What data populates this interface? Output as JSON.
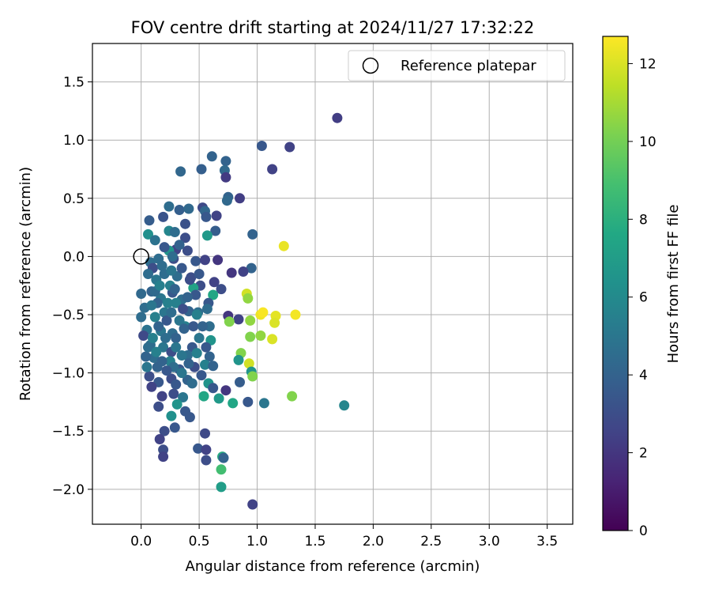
{
  "chart_data": {
    "type": "scatter",
    "title": "FOV centre drift starting at 2024/11/27 17:32:22",
    "xlabel": "Angular distance from reference (arcmin)",
    "ylabel": "Rotation from reference (arcmin)",
    "xlim": [
      -0.42,
      3.72
    ],
    "ylim": [
      -2.3,
      1.83
    ],
    "xticks": [
      0.0,
      0.5,
      1.0,
      1.5,
      2.0,
      2.5,
      3.0,
      3.5
    ],
    "xtick_labels": [
      "0.0",
      "0.5",
      "1.0",
      "1.5",
      "2.0",
      "2.5",
      "3.0",
      "3.5"
    ],
    "yticks": [
      -2.0,
      -1.5,
      -1.0,
      -0.5,
      0.0,
      0.5,
      1.0,
      1.5
    ],
    "ytick_labels": [
      "−2.0",
      "−1.5",
      "−1.0",
      "−0.5",
      "0.0",
      "0.5",
      "1.0",
      "1.5"
    ],
    "grid": true,
    "legend": {
      "placement": "top-right",
      "entries": [
        "Reference platepar"
      ]
    },
    "colorbar": {
      "label": "Hours from first FF file",
      "colormap": "viridis",
      "range": [
        0,
        12.7
      ],
      "ticks": [
        0,
        2,
        4,
        6,
        8,
        10,
        12
      ],
      "tick_labels": [
        "0",
        "2",
        "4",
        "6",
        "8",
        "10",
        "12"
      ]
    },
    "reference_point": {
      "x": 0.0,
      "y": 0.0
    },
    "points_xyh": [
      [
        1.69,
        1.19,
        2.3
      ],
      [
        1.04,
        0.95,
        3.5
      ],
      [
        1.28,
        0.94,
        2.5
      ],
      [
        0.61,
        0.86,
        4.0
      ],
      [
        0.73,
        0.82,
        4.0
      ],
      [
        0.52,
        0.75,
        3.8
      ],
      [
        0.34,
        0.73,
        4.2
      ],
      [
        1.13,
        0.75,
        2.5
      ],
      [
        0.72,
        0.74,
        4.3
      ],
      [
        0.73,
        0.68,
        2.2
      ],
      [
        0.75,
        0.51,
        4.0
      ],
      [
        0.85,
        0.5,
        2.3
      ],
      [
        0.74,
        0.48,
        4.3
      ],
      [
        0.24,
        0.43,
        4.5
      ],
      [
        0.33,
        0.4,
        3.8
      ],
      [
        0.41,
        0.41,
        4.3
      ],
      [
        0.53,
        0.42,
        2.8
      ],
      [
        0.55,
        0.39,
        4.2
      ],
      [
        0.56,
        0.34,
        3.5
      ],
      [
        0.65,
        0.35,
        2.5
      ],
      [
        0.19,
        0.34,
        3.3
      ],
      [
        0.07,
        0.31,
        3.7
      ],
      [
        0.38,
        0.28,
        3.2
      ],
      [
        0.64,
        0.22,
        3.7
      ],
      [
        0.06,
        0.19,
        6.3
      ],
      [
        0.57,
        0.18,
        6.8
      ],
      [
        0.96,
        0.19,
        4.0
      ],
      [
        0.24,
        0.22,
        5.8
      ],
      [
        0.29,
        0.21,
        4.5
      ],
      [
        0.12,
        0.14,
        4.8
      ],
      [
        0.38,
        0.16,
        3.0
      ],
      [
        0.3,
        0.06,
        2.5
      ],
      [
        0.24,
        0.05,
        6.5
      ],
      [
        1.23,
        0.09,
        12.3
      ],
      [
        0.08,
        -0.05,
        4.5
      ],
      [
        0.15,
        -0.02,
        4.5
      ],
      [
        0.28,
        -0.02,
        3.0
      ],
      [
        0.47,
        -0.04,
        3.5
      ],
      [
        0.55,
        -0.03,
        2.5
      ],
      [
        0.66,
        -0.03,
        2.0
      ],
      [
        0.95,
        -0.1,
        4.0
      ],
      [
        0.78,
        -0.14,
        2.0
      ],
      [
        0.88,
        -0.13,
        2.5
      ],
      [
        0.13,
        -0.2,
        5.0
      ],
      [
        0.31,
        -0.17,
        4.5
      ],
      [
        0.43,
        -0.18,
        3.0
      ],
      [
        0.51,
        -0.25,
        3.0
      ],
      [
        0.63,
        -0.22,
        2.5
      ],
      [
        0.45,
        -0.27,
        7.3
      ],
      [
        0.69,
        -0.28,
        3.0
      ],
      [
        0.0,
        -0.32,
        4.3
      ],
      [
        0.09,
        -0.3,
        4.0
      ],
      [
        0.17,
        -0.36,
        5.0
      ],
      [
        0.27,
        -0.31,
        3.5
      ],
      [
        0.35,
        -0.37,
        4.5
      ],
      [
        0.47,
        -0.33,
        3.5
      ],
      [
        0.62,
        -0.33,
        7.5
      ],
      [
        0.91,
        -0.32,
        11.8
      ],
      [
        0.92,
        -0.36,
        10.6
      ],
      [
        0.3,
        -0.4,
        5.5
      ],
      [
        0.58,
        -0.4,
        3.5
      ],
      [
        0.03,
        -0.44,
        4.5
      ],
      [
        0.2,
        -0.48,
        5.0
      ],
      [
        0.12,
        -0.52,
        5.5
      ],
      [
        0.41,
        -0.47,
        4.0
      ],
      [
        0.49,
        -0.48,
        4.5
      ],
      [
        1.03,
        -0.5,
        12.4
      ],
      [
        1.05,
        -0.48,
        12.6
      ],
      [
        1.16,
        -0.51,
        12.2
      ],
      [
        1.15,
        -0.57,
        12.0
      ],
      [
        1.33,
        -0.5,
        12.5
      ],
      [
        0.75,
        -0.51,
        2.0
      ],
      [
        0.84,
        -0.54,
        2.5
      ],
      [
        0.94,
        -0.55,
        10.6
      ],
      [
        0.76,
        -0.56,
        10.3
      ],
      [
        0.0,
        -0.52,
        4.5
      ],
      [
        0.05,
        -0.63,
        4.8
      ],
      [
        0.17,
        -0.64,
        5.0
      ],
      [
        0.27,
        -0.66,
        4.5
      ],
      [
        0.38,
        -0.6,
        5.5
      ],
      [
        0.59,
        -0.6,
        4.5
      ],
      [
        0.3,
        -0.7,
        4.0
      ],
      [
        0.6,
        -0.72,
        6.5
      ],
      [
        0.08,
        -0.76,
        4.5
      ],
      [
        0.19,
        -0.78,
        5.0
      ],
      [
        0.44,
        -0.78,
        3.5
      ],
      [
        1.03,
        -0.68,
        10.6
      ],
      [
        0.94,
        -0.69,
        10.3
      ],
      [
        1.13,
        -0.71,
        12.0
      ],
      [
        0.02,
        -0.68,
        2.8
      ],
      [
        0.11,
        -0.87,
        4.5
      ],
      [
        0.26,
        -0.82,
        3.0
      ],
      [
        0.4,
        -0.85,
        4.5
      ],
      [
        0.48,
        -0.83,
        5.5
      ],
      [
        0.59,
        -0.86,
        4.0
      ],
      [
        0.86,
        -0.83,
        10.3
      ],
      [
        0.84,
        -0.89,
        6.5
      ],
      [
        0.93,
        -0.92,
        11.8
      ],
      [
        0.95,
        -0.99,
        6.5
      ],
      [
        0.04,
        -0.86,
        4.0
      ],
      [
        0.14,
        -0.95,
        4.0
      ],
      [
        0.25,
        -0.9,
        5.5
      ],
      [
        0.33,
        -0.97,
        3.5
      ],
      [
        0.46,
        -0.95,
        3.0
      ],
      [
        0.55,
        -0.93,
        5.5
      ],
      [
        0.62,
        -0.94,
        4.0
      ],
      [
        0.07,
        -1.03,
        3.0
      ],
      [
        0.15,
        -1.08,
        3.5
      ],
      [
        0.26,
        -1.05,
        3.0
      ],
      [
        0.4,
        -1.06,
        4.0
      ],
      [
        0.52,
        -1.02,
        3.5
      ],
      [
        0.96,
        -1.03,
        10.3
      ],
      [
        0.09,
        -1.12,
        2.5
      ],
      [
        0.3,
        -1.1,
        3.5
      ],
      [
        0.44,
        -1.09,
        4.5
      ],
      [
        0.58,
        -1.09,
        6.5
      ],
      [
        0.62,
        -1.13,
        3.5
      ],
      [
        0.85,
        -1.08,
        3.7
      ],
      [
        0.18,
        -1.2,
        2.5
      ],
      [
        0.28,
        -1.18,
        3.0
      ],
      [
        0.36,
        -1.21,
        5.0
      ],
      [
        0.54,
        -1.2,
        7.5
      ],
      [
        0.73,
        -1.15,
        2.0
      ],
      [
        0.67,
        -1.22,
        6.8
      ],
      [
        0.79,
        -1.26,
        7.5
      ],
      [
        0.92,
        -1.25,
        3.5
      ],
      [
        1.06,
        -1.26,
        5.0
      ],
      [
        1.3,
        -1.2,
        10.3
      ],
      [
        1.75,
        -1.28,
        5.8
      ],
      [
        0.15,
        -1.29,
        3.0
      ],
      [
        0.31,
        -1.27,
        6.5
      ],
      [
        0.38,
        -1.33,
        3.5
      ],
      [
        0.26,
        -1.37,
        6.3
      ],
      [
        0.42,
        -1.38,
        3.5
      ],
      [
        0.29,
        -1.47,
        3.5
      ],
      [
        0.2,
        -1.5,
        3.0
      ],
      [
        0.16,
        -1.57,
        2.5
      ],
      [
        0.55,
        -1.52,
        2.8
      ],
      [
        0.19,
        -1.66,
        3.0
      ],
      [
        0.49,
        -1.65,
        3.5
      ],
      [
        0.56,
        -1.66,
        2.5
      ],
      [
        0.19,
        -1.72,
        2.5
      ],
      [
        0.56,
        -1.75,
        3.0
      ],
      [
        0.7,
        -1.72,
        7.8
      ],
      [
        0.71,
        -1.73,
        4.0
      ],
      [
        0.69,
        -1.83,
        8.8
      ],
      [
        0.69,
        -1.98,
        7.0
      ],
      [
        0.96,
        -2.13,
        2.5
      ],
      [
        0.1,
        -0.1,
        3.0
      ],
      [
        0.2,
        -0.15,
        4.5
      ],
      [
        0.25,
        -0.25,
        5.5
      ],
      [
        0.14,
        -0.4,
        4.0
      ],
      [
        0.22,
        -0.55,
        3.5
      ],
      [
        0.33,
        -0.55,
        5.0
      ],
      [
        0.1,
        -0.7,
        5.5
      ],
      [
        0.21,
        -0.7,
        4.5
      ],
      [
        0.35,
        -0.85,
        5.0
      ],
      [
        0.18,
        -0.9,
        4.0
      ],
      [
        0.28,
        -0.95,
        4.5
      ],
      [
        0.05,
        -0.95,
        5.0
      ],
      [
        0.12,
        -0.3,
        4.3
      ],
      [
        0.23,
        -0.4,
        5.5
      ],
      [
        0.4,
        -0.35,
        4.0
      ],
      [
        0.37,
        -0.62,
        4.0
      ],
      [
        0.5,
        -0.7,
        5.0
      ],
      [
        0.45,
        -0.6,
        3.5
      ],
      [
        0.06,
        -0.15,
        4.5
      ],
      [
        0.18,
        -0.08,
        4.5
      ],
      [
        0.26,
        -0.12,
        5.0
      ],
      [
        0.35,
        -0.1,
        3.5
      ],
      [
        0.4,
        0.05,
        3.0
      ],
      [
        0.33,
        0.1,
        4.0
      ],
      [
        0.27,
        0.0,
        4.5
      ],
      [
        0.2,
        0.08,
        3.5
      ],
      [
        0.42,
        -0.2,
        3.0
      ],
      [
        0.16,
        -0.25,
        5.5
      ],
      [
        0.29,
        -0.28,
        4.0
      ],
      [
        0.09,
        -0.42,
        5.0
      ],
      [
        0.26,
        -0.48,
        4.5
      ],
      [
        0.15,
        -0.6,
        4.0
      ],
      [
        0.3,
        -0.78,
        5.0
      ],
      [
        0.06,
        -0.78,
        4.5
      ],
      [
        0.13,
        -0.82,
        5.5
      ],
      [
        0.22,
        -0.98,
        3.5
      ],
      [
        0.35,
        -1.0,
        5.0
      ],
      [
        0.48,
        -0.5,
        5.5
      ],
      [
        0.53,
        -0.6,
        4.0
      ],
      [
        0.56,
        -0.78,
        3.5
      ],
      [
        0.41,
        -0.92,
        4.0
      ],
      [
        0.36,
        -0.45,
        3.0
      ],
      [
        0.5,
        -0.15,
        3.5
      ],
      [
        0.57,
        -0.45,
        4.5
      ]
    ]
  }
}
